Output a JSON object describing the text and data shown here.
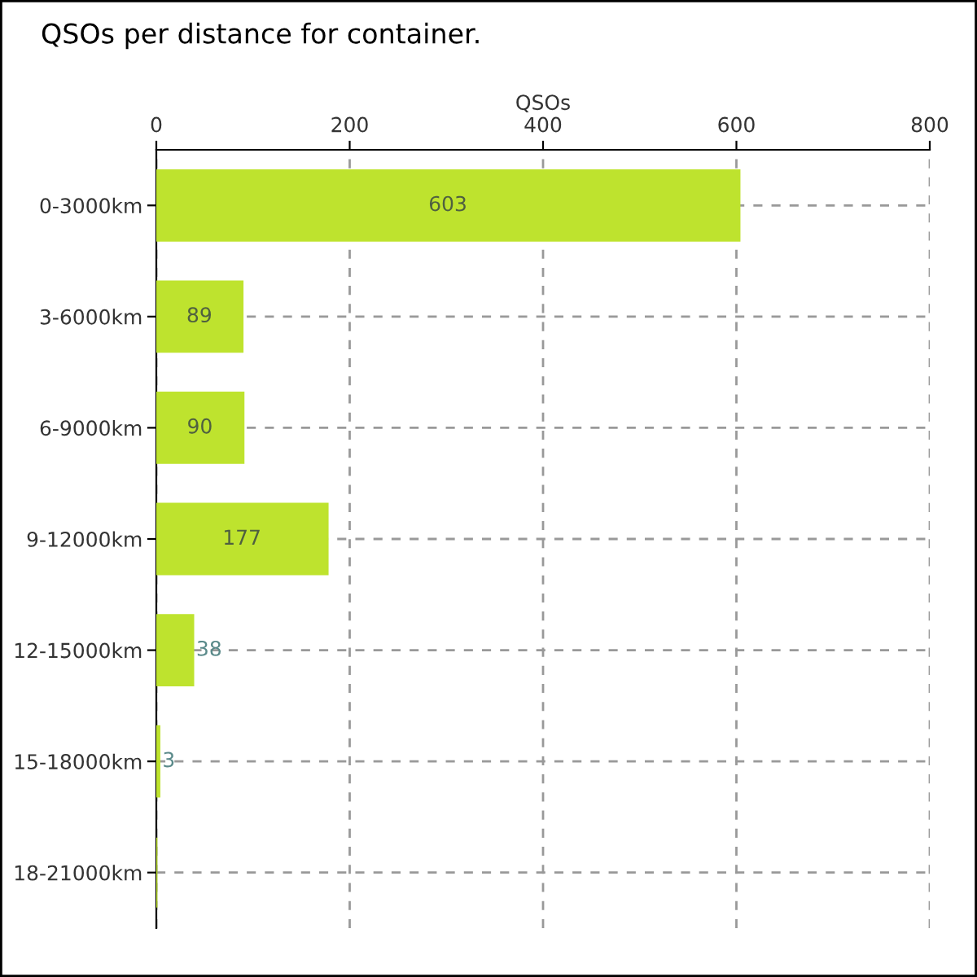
{
  "chart_data": {
    "type": "bar",
    "orientation": "horizontal",
    "title": "QSOs per distance for container.",
    "xlabel": "QSOs",
    "categories": [
      "0-3000km",
      "3-6000km",
      "6-9000km",
      "9-12000km",
      "12-15000km",
      "15-18000km",
      "18-21000km"
    ],
    "values": [
      603,
      89,
      90,
      177,
      38,
      3,
      0
    ],
    "color": "#bee32e",
    "value_labels": [
      "603",
      "89",
      "90",
      "177",
      "38",
      "3",
      null
    ],
    "xlim": [
      0,
      800
    ],
    "xticks": [
      0,
      200,
      400,
      600,
      800
    ],
    "grid": true
  }
}
